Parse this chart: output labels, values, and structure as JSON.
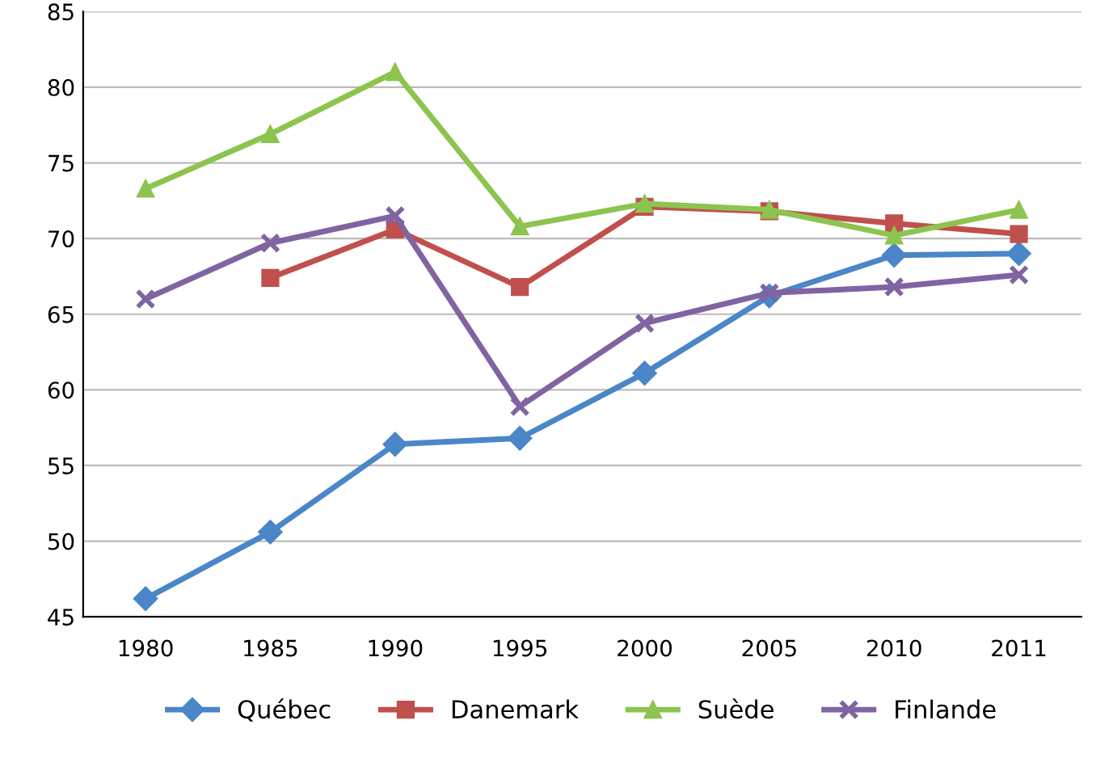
{
  "chart_data": {
    "type": "line",
    "categories": [
      "1980",
      "1985",
      "1990",
      "1995",
      "2000",
      "2005",
      "2010",
      "2011"
    ],
    "ylim": [
      45,
      85
    ],
    "yticks": [
      45,
      50,
      55,
      60,
      65,
      70,
      75,
      80,
      85
    ],
    "grid": "y",
    "legend": "bottom",
    "line_style": "solid",
    "series": [
      {
        "name": "Québec",
        "color": "#4a86c8",
        "marker": "diamond",
        "values": [
          46.2,
          50.6,
          56.4,
          56.8,
          61.1,
          66.2,
          68.9,
          69.0
        ]
      },
      {
        "name": "Danemark",
        "color": "#c0504d",
        "marker": "square",
        "values": [
          null,
          67.4,
          70.6,
          66.8,
          72.1,
          71.8,
          71.0,
          70.3
        ]
      },
      {
        "name": "Suède",
        "color": "#8cc44f",
        "marker": "triangle",
        "values": [
          73.3,
          76.9,
          81.0,
          70.8,
          72.3,
          71.9,
          70.2,
          71.9
        ]
      },
      {
        "name": "Finlande",
        "color": "#8064a2",
        "marker": "cross",
        "values": [
          66.0,
          69.7,
          71.5,
          58.9,
          64.4,
          66.4,
          66.8,
          67.6
        ]
      }
    ]
  }
}
